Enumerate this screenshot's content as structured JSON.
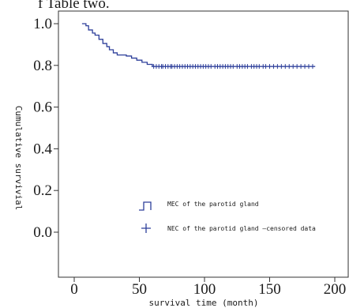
{
  "page": {
    "caption_fragment": "f Table two."
  },
  "chart_data": {
    "type": "line",
    "subtype": "kaplan-meier",
    "xlabel": "survival time (month)",
    "ylabel": "Cumulative survivial",
    "xlim": [
      0,
      200
    ],
    "ylim": [
      0.0,
      1.0
    ],
    "x_ticks": [
      "0",
      "50",
      "100",
      "150",
      "200"
    ],
    "y_ticks": [
      "0.0",
      "0.2",
      "0.4",
      "0.6",
      "0.8",
      "1.0"
    ],
    "grid": false,
    "legend_position": "bottom-right",
    "colors": {
      "series": "#2d3f9a",
      "axis": "#333333"
    },
    "series": [
      {
        "name": "MEC of the parotid gland",
        "step_points": [
          [
            6,
            1.0
          ],
          [
            9,
            0.99
          ],
          [
            11,
            0.97
          ],
          [
            14,
            0.955
          ],
          [
            16,
            0.945
          ],
          [
            19,
            0.925
          ],
          [
            22,
            0.905
          ],
          [
            25,
            0.89
          ],
          [
            27,
            0.875
          ],
          [
            30,
            0.86
          ],
          [
            33,
            0.85
          ],
          [
            37,
            0.85
          ],
          [
            40,
            0.845
          ],
          [
            44,
            0.835
          ],
          [
            48,
            0.825
          ],
          [
            52,
            0.815
          ],
          [
            56,
            0.805
          ],
          [
            60,
            0.795
          ],
          [
            185,
            0.795
          ]
        ]
      }
    ],
    "censored": {
      "name": "NEC of the parotid gland —censored data",
      "y": 0.795,
      "x": [
        61,
        63,
        65,
        67,
        68,
        70,
        72,
        74,
        75,
        77,
        79,
        81,
        83,
        85,
        87,
        89,
        91,
        93,
        95,
        97,
        99,
        101,
        103,
        105,
        108,
        110,
        112,
        114,
        116,
        118,
        120,
        122,
        125,
        127,
        129,
        131,
        133,
        136,
        138,
        140,
        142,
        145,
        147,
        150,
        153,
        156,
        159,
        162,
        165,
        168,
        171,
        174,
        177,
        180,
        183
      ]
    },
    "legend": [
      {
        "symbol": "step",
        "label": "MEC of the parotid gland"
      },
      {
        "symbol": "plus",
        "label": "NEC of the parotid gland —censored data"
      }
    ]
  }
}
